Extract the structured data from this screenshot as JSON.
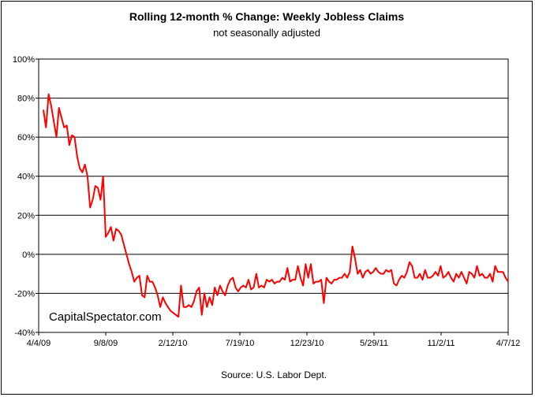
{
  "chart_data": {
    "type": "line",
    "title": "Rolling 12-month %  Change: Weekly Jobless Claims",
    "subtitle": "not seasonally adjusted",
    "watermark": "CapitalSpectator.com",
    "source": "Source: U.S. Labor Dept.",
    "xlabel": "",
    "ylabel": "",
    "x_tick_labels": [
      "4/4/09",
      "9/8/09",
      "2/12/10",
      "7/19/10",
      "12/23/10",
      "5/29/11",
      "11/2/11",
      "4/7/12"
    ],
    "y_tick_labels": [
      "100%",
      "80%",
      "60%",
      "40%",
      "20%",
      "0%",
      "-20%",
      "-40%"
    ],
    "ylim": [
      -40,
      100
    ],
    "ytick_values": [
      100,
      80,
      60,
      40,
      20,
      0,
      -20,
      -40
    ],
    "grid": "horizontal",
    "line_color": "#ff0000",
    "series": [
      {
        "values": [
          74,
          65,
          82,
          76,
          68,
          60,
          75,
          70,
          65,
          66,
          56,
          61,
          60,
          50,
          44,
          42,
          46,
          40,
          24,
          28,
          35,
          34,
          28,
          40,
          9,
          11,
          14,
          7,
          13,
          12,
          10,
          5,
          0,
          -5,
          -9,
          -14,
          -12,
          -11,
          -21,
          -22,
          -11,
          -14,
          -14,
          -17,
          -21,
          -27,
          -22,
          -25,
          -27,
          -29,
          -30,
          -31,
          -32,
          -16,
          -27,
          -27,
          -26,
          -27,
          -24,
          -19,
          -17,
          -31,
          -20,
          -27,
          -22,
          -26,
          -17,
          -21,
          -16,
          -19,
          -21,
          -16,
          -13,
          -12,
          -17,
          -19,
          -17,
          -16,
          -17,
          -13,
          -18,
          -17,
          -10,
          -17,
          -16,
          -17,
          -13,
          -14,
          -13,
          -15,
          -14,
          -14,
          -12,
          -13,
          -7,
          -14,
          -13,
          -13,
          -6,
          -12,
          -16,
          -5,
          -12,
          -5,
          -15,
          -14,
          -14,
          -13,
          -25,
          -12,
          -14,
          -15,
          -13,
          -13,
          -12,
          -12,
          -10,
          -12,
          -9,
          4,
          -2,
          -10,
          -8,
          -12,
          -9,
          -8,
          -10,
          -9,
          -7,
          -9,
          -10,
          -10,
          -8,
          -9,
          -8,
          -15,
          -16,
          -13,
          -11,
          -12,
          -9,
          -4,
          -6,
          -12,
          -12,
          -10,
          -13,
          -8,
          -12,
          -12,
          -11,
          -9,
          -11,
          -6,
          -12,
          -11,
          -9,
          -12,
          -14,
          -10,
          -12,
          -9,
          -12,
          -15,
          -9,
          -10,
          -12,
          -6,
          -11,
          -10,
          -12,
          -12,
          -10,
          -14,
          -6,
          -9,
          -9,
          -9,
          -12,
          -14
        ]
      }
    ]
  }
}
